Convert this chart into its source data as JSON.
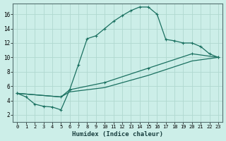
{
  "xlabel": "Humidex (Indice chaleur)",
  "bg_color": "#cceee8",
  "grid_color_major": "#b0d8d0",
  "grid_color_minor": "#c8e8e0",
  "line_color": "#1a7060",
  "xlim": [
    -0.5,
    23.5
  ],
  "ylim": [
    1,
    17.5
  ],
  "xticks": [
    0,
    1,
    2,
    3,
    4,
    5,
    6,
    7,
    8,
    9,
    10,
    11,
    12,
    13,
    14,
    15,
    16,
    17,
    18,
    19,
    20,
    21,
    22,
    23
  ],
  "yticks": [
    2,
    4,
    6,
    8,
    10,
    12,
    14,
    16
  ],
  "curve1_x": [
    0,
    1,
    2,
    3,
    4,
    5,
    6,
    7,
    8,
    9,
    10,
    11,
    12,
    13,
    14,
    15,
    16,
    17,
    18,
    19,
    20,
    21,
    22,
    23
  ],
  "curve1_y": [
    5.0,
    4.5,
    3.5,
    3.2,
    3.1,
    2.7,
    5.5,
    9.0,
    12.6,
    13.0,
    14.0,
    15.0,
    15.8,
    16.5,
    17.0,
    17.0,
    16.0,
    12.5,
    12.3,
    12.0,
    12.0,
    11.5,
    10.5,
    10.0
  ],
  "curve2_x": [
    0,
    5,
    6,
    10,
    15,
    20,
    23
  ],
  "curve2_y": [
    5.0,
    4.5,
    5.5,
    6.5,
    8.5,
    10.5,
    10.0
  ],
  "curve3_x": [
    0,
    5,
    6,
    10,
    15,
    20,
    23
  ],
  "curve3_y": [
    5.0,
    4.5,
    5.2,
    5.8,
    7.5,
    9.5,
    10.0
  ]
}
